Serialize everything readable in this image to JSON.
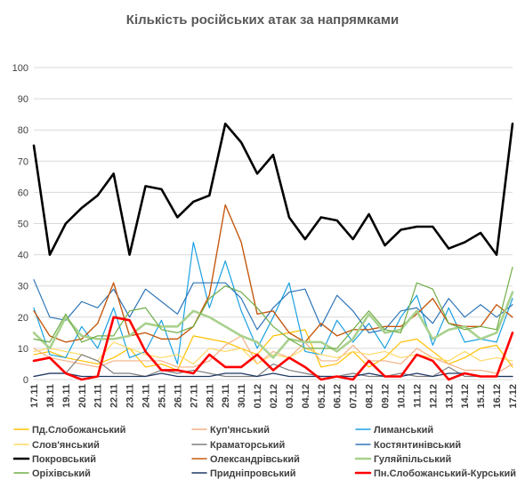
{
  "chart_data": {
    "type": "line",
    "title": "Кількість російських атак за напрямками",
    "xlabel": "",
    "ylabel": "",
    "ylim": [
      0,
      100
    ],
    "yticks": [
      0,
      10,
      20,
      30,
      40,
      50,
      60,
      70,
      80,
      90,
      100
    ],
    "grid": true,
    "legend_position": "bottom",
    "categories": [
      "17.11",
      "18.11",
      "19.11",
      "20.11",
      "21.11",
      "22.11",
      "23.11",
      "24.11",
      "25.11",
      "26.11",
      "27.11",
      "28.11",
      "29.11",
      "30.11",
      "01.12",
      "02.12",
      "03.12",
      "04.12",
      "05.12",
      "06.12",
      "07.12",
      "08.12",
      "09.12",
      "10.12",
      "11.12",
      "12.12",
      "13.12",
      "14.12",
      "15.12",
      "16.12",
      "17.12"
    ],
    "series": [
      {
        "name": "Пд.Слобожанський",
        "color": "#ffc000",
        "width": 1.2,
        "values": [
          8,
          9,
          7,
          6,
          5,
          7,
          10,
          4,
          5,
          3,
          14,
          13,
          12,
          10,
          8,
          14,
          15,
          16,
          4,
          5,
          9,
          4,
          7,
          12,
          13,
          9,
          5,
          7,
          10,
          11,
          4
        ]
      },
      {
        "name": "Куп'янський",
        "color": "#f4b183",
        "width": 1.2,
        "values": [
          10,
          7,
          6,
          5,
          4,
          6,
          6,
          6,
          6,
          4,
          4,
          6,
          11,
          14,
          5,
          9,
          7,
          12,
          6,
          6,
          11,
          6,
          6,
          5,
          10,
          7,
          5,
          3,
          3,
          2,
          5
        ]
      },
      {
        "name": "Лиманський",
        "color": "#1ba1e2",
        "width": 1.2,
        "values": [
          23,
          8,
          7,
          17,
          10,
          23,
          7,
          9,
          19,
          5,
          44,
          23,
          38,
          22,
          10,
          20,
          31,
          9,
          8,
          19,
          12,
          18,
          10,
          20,
          27,
          11,
          23,
          12,
          13,
          12,
          26
        ]
      },
      {
        "name": "Слов'янський",
        "color": "#ffd966",
        "width": 1.2,
        "values": [
          9,
          10,
          9,
          8,
          6,
          12,
          10,
          8,
          7,
          8,
          5,
          10,
          9,
          10,
          5,
          8,
          7,
          10,
          8,
          7,
          9,
          8,
          9,
          7,
          8,
          7,
          6,
          9,
          6,
          7,
          6
        ]
      },
      {
        "name": "Краматорський",
        "color": "#7f7f7f",
        "width": 1.2,
        "values": [
          1,
          2,
          2,
          8,
          6,
          2,
          2,
          1,
          3,
          2,
          3,
          2,
          1,
          1,
          1,
          5,
          3,
          2,
          1,
          1,
          2,
          1,
          1,
          2,
          1,
          1,
          4,
          1,
          1,
          1,
          1
        ]
      },
      {
        "name": "Костянтинівський",
        "color": "#2e75b6",
        "width": 1.2,
        "values": [
          32,
          20,
          19,
          25,
          23,
          29,
          20,
          29,
          25,
          21,
          31,
          31,
          31,
          26,
          16,
          23,
          28,
          29,
          17,
          27,
          22,
          15,
          16,
          22,
          23,
          18,
          26,
          20,
          24,
          20,
          24
        ]
      },
      {
        "name": "Покровський",
        "color": "#000000",
        "width": 2.6,
        "values": [
          75,
          40,
          50,
          55,
          59,
          66,
          40,
          62,
          61,
          52,
          57,
          59,
          82,
          76,
          66,
          72,
          52,
          45,
          52,
          51,
          45,
          53,
          43,
          48,
          49,
          49,
          42,
          44,
          47,
          40,
          82
        ]
      },
      {
        "name": "Олександрівський",
        "color": "#c55a11",
        "width": 1.4,
        "values": [
          22,
          14,
          12,
          13,
          18,
          31,
          14,
          15,
          13,
          13,
          17,
          27,
          56,
          44,
          21,
          22,
          15,
          12,
          18,
          14,
          16,
          16,
          17,
          17,
          21,
          26,
          18,
          17,
          17,
          24,
          20
        ]
      },
      {
        "name": "Гуляйпільський",
        "color": "#a9d18e",
        "width": 2.6,
        "values": [
          15,
          10,
          20,
          14,
          13,
          13,
          14,
          18,
          17,
          17,
          22,
          20,
          17,
          14,
          12,
          7,
          13,
          12,
          12,
          9,
          13,
          21,
          15,
          16,
          22,
          13,
          16,
          17,
          13,
          15,
          28
        ]
      },
      {
        "name": "Оріхівський",
        "color": "#70ad47",
        "width": 1.2,
        "values": [
          13,
          12,
          21,
          12,
          14,
          14,
          22,
          23,
          16,
          15,
          17,
          26,
          30,
          28,
          23,
          17,
          13,
          10,
          10,
          10,
          16,
          22,
          16,
          15,
          31,
          29,
          18,
          16,
          17,
          16,
          36
        ]
      },
      {
        "name": "Придніпровський",
        "color": "#1f3864",
        "width": 1.2,
        "values": [
          1,
          2,
          2,
          1,
          1,
          1,
          1,
          1,
          2,
          1,
          1,
          1,
          2,
          2,
          1,
          2,
          1,
          1,
          1,
          1,
          1,
          2,
          1,
          1,
          2,
          1,
          2,
          2,
          1,
          1,
          1
        ]
      },
      {
        "name": "Пн.Слобожанський-Курський",
        "color": "#ff0000",
        "width": 2.6,
        "values": [
          6,
          7,
          2,
          0,
          1,
          20,
          19,
          9,
          3,
          3,
          2,
          8,
          4,
          4,
          8,
          3,
          7,
          4,
          0,
          1,
          0,
          6,
          1,
          1,
          8,
          6,
          0,
          2,
          1,
          1,
          15
        ]
      }
    ]
  }
}
